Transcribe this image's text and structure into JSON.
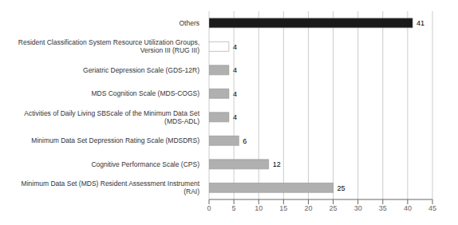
{
  "chart_data": {
    "type": "bar",
    "orientation": "horizontal",
    "categories": [
      "Minimum Data Set (MDS) Resident Assessment Instrument\n(RAI)",
      "Cognitive Performance Scale (CPS)",
      "Minimum Data Set Depression Rating Scale (MDSDRS)",
      "Activities of Daily Living SBScale of the Minimum Data Set\n(MDS-ADL)",
      "MDS Cognition Scale (MDS-COGS)",
      "Geriatric Depression Scale (GDS-12R)",
      "Resident Classification System Resource Utilization Groups,\nVersion III (RUG III)",
      "Others"
    ],
    "values": [
      25,
      12,
      6,
      4,
      4,
      4,
      4,
      41
    ],
    "colors": [
      "#b0b0b0",
      "#b0b0b0",
      "#b0b0b0",
      "#b0b0b0",
      "#b0b0b0",
      "#b0b0b0",
      "#ffffff",
      "#1a1a1a"
    ],
    "xlim": [
      0,
      45
    ],
    "xticks": [
      0,
      5,
      10,
      15,
      20,
      25,
      30,
      35,
      40,
      45
    ],
    "grid": true,
    "data_labels": true
  }
}
